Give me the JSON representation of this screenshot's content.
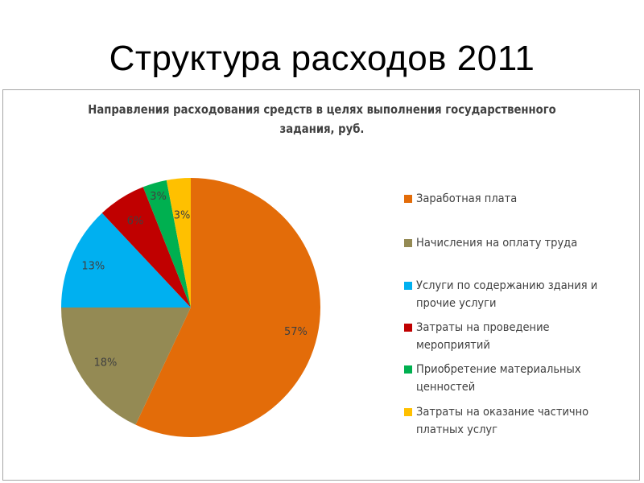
{
  "slide_title": "Структура расходов 2011",
  "chart_data": {
    "type": "pie",
    "title": "Направления расходования средств в целях выполнения государственного задания, руб.",
    "title_lines": [
      "Направления расходования средств в целях выполнения государственного",
      "задания, руб."
    ],
    "unit": "%",
    "legend_position": "right",
    "categories": [
      "Заработная плата",
      "Начисления на оплату труда",
      "Услуги по содержанию здания и прочие услуги",
      "Затраты на проведение мероприятий",
      "Приобретение материальных ценностей",
      "Затраты на оказание частично платных услуг"
    ],
    "values": [
      57,
      18,
      13,
      6,
      3,
      3
    ],
    "labels": [
      "57%",
      "18%",
      "13%",
      "6%",
      "3%",
      "3%"
    ],
    "colors": [
      "#E36C09",
      "#948A54",
      "#00B0F0",
      "#C00000",
      "#00B050",
      "#FFC000"
    ]
  }
}
